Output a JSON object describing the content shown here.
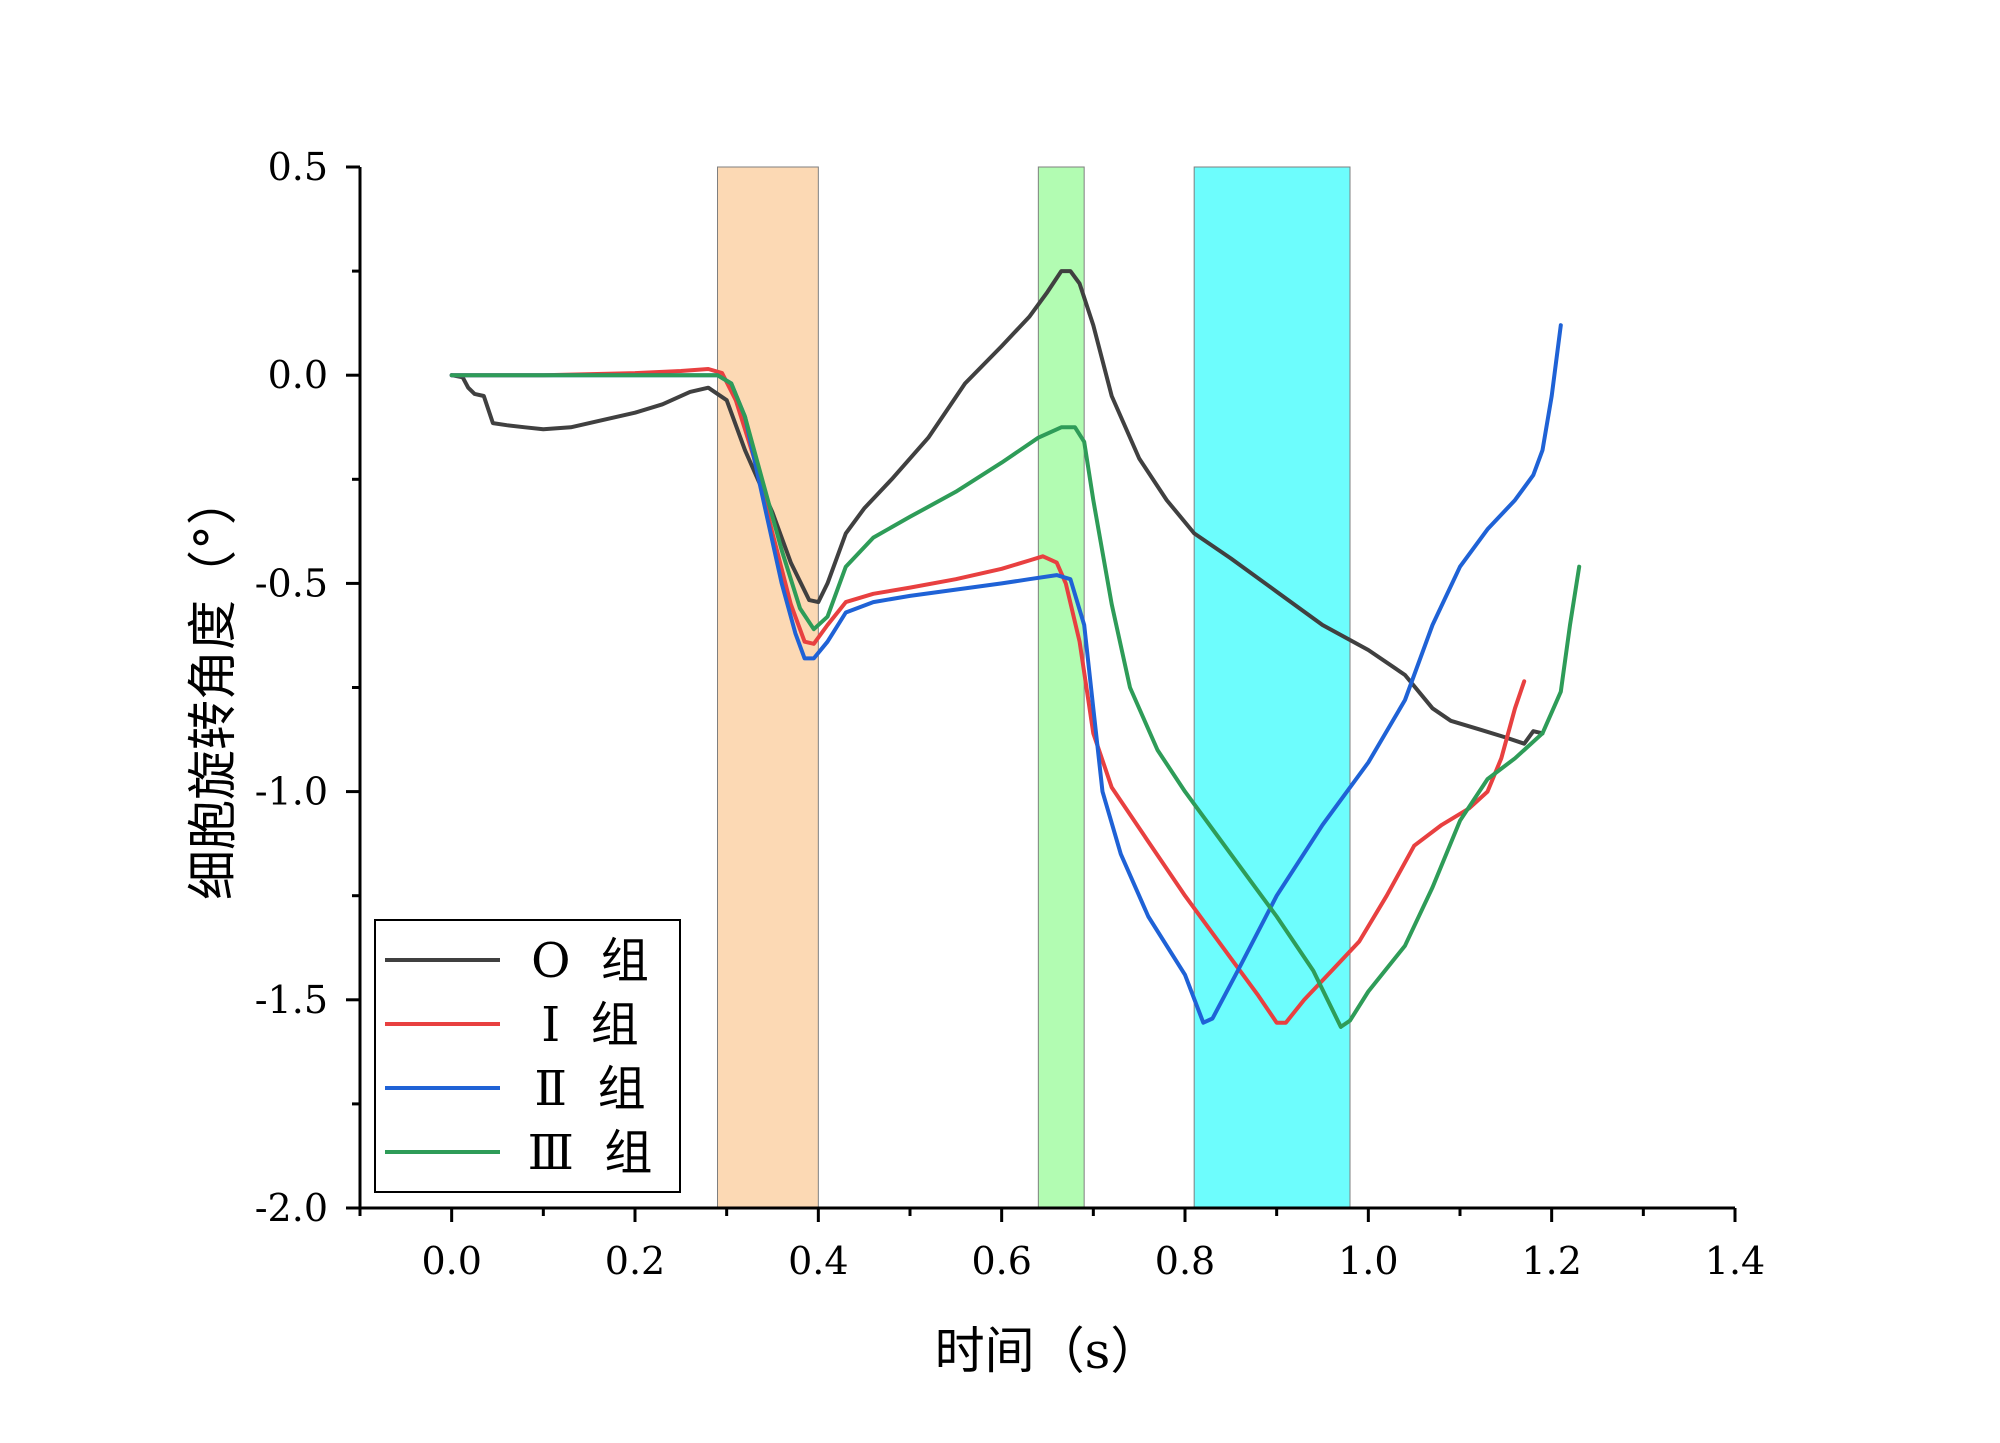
{
  "chart_data": {
    "type": "line",
    "title": "",
    "xlabel": "时间（s）",
    "ylabel": "细胞旋转角度（°）",
    "xlim": [
      -0.1,
      1.4
    ],
    "ylim": [
      -2.0,
      0.5
    ],
    "x_ticks": [
      0.0,
      0.2,
      0.4,
      0.6,
      0.8,
      1.0,
      1.2,
      1.4
    ],
    "x_tick_labels": [
      "0.0",
      "0.2",
      "0.4",
      "0.6",
      "0.8",
      "1.0",
      "1.2",
      "1.4"
    ],
    "y_ticks": [
      0.5,
      0.0,
      -0.5,
      -1.0,
      -1.5,
      -2.0
    ],
    "y_tick_labels": [
      "0.5",
      "0.0",
      "-0.5",
      "-1.0",
      "-1.5",
      "-2.0"
    ],
    "legend_position": "bottom-left",
    "shaded_regions": [
      {
        "x_start": 0.29,
        "x_end": 0.4,
        "color": "#fcd9b4"
      },
      {
        "x_start": 0.64,
        "x_end": 0.69,
        "color": "#b2fcb2"
      },
      {
        "x_start": 0.81,
        "x_end": 0.98,
        "color": "#6dfdfd"
      }
    ],
    "series": [
      {
        "name": "O  组",
        "color": "#404040",
        "points": [
          [
            0.0,
            0.0
          ],
          [
            0.012,
            -0.005
          ],
          [
            0.018,
            -0.03
          ],
          [
            0.025,
            -0.045
          ],
          [
            0.035,
            -0.05
          ],
          [
            0.045,
            -0.115
          ],
          [
            0.06,
            -0.12
          ],
          [
            0.08,
            -0.125
          ],
          [
            0.1,
            -0.13
          ],
          [
            0.13,
            -0.125
          ],
          [
            0.17,
            -0.105
          ],
          [
            0.2,
            -0.09
          ],
          [
            0.23,
            -0.07
          ],
          [
            0.26,
            -0.04
          ],
          [
            0.28,
            -0.03
          ],
          [
            0.3,
            -0.06
          ],
          [
            0.32,
            -0.18
          ],
          [
            0.35,
            -0.33
          ],
          [
            0.37,
            -0.45
          ],
          [
            0.39,
            -0.54
          ],
          [
            0.4,
            -0.545
          ],
          [
            0.41,
            -0.5
          ],
          [
            0.43,
            -0.38
          ],
          [
            0.45,
            -0.32
          ],
          [
            0.48,
            -0.25
          ],
          [
            0.52,
            -0.15
          ],
          [
            0.56,
            -0.02
          ],
          [
            0.6,
            0.07
          ],
          [
            0.63,
            0.14
          ],
          [
            0.65,
            0.2
          ],
          [
            0.665,
            0.25
          ],
          [
            0.675,
            0.25
          ],
          [
            0.685,
            0.22
          ],
          [
            0.7,
            0.12
          ],
          [
            0.72,
            -0.05
          ],
          [
            0.75,
            -0.2
          ],
          [
            0.78,
            -0.3
          ],
          [
            0.81,
            -0.38
          ],
          [
            0.85,
            -0.44
          ],
          [
            0.9,
            -0.52
          ],
          [
            0.95,
            -0.6
          ],
          [
            1.0,
            -0.66
          ],
          [
            1.04,
            -0.72
          ],
          [
            1.07,
            -0.8
          ],
          [
            1.09,
            -0.83
          ],
          [
            1.12,
            -0.85
          ],
          [
            1.15,
            -0.87
          ],
          [
            1.17,
            -0.885
          ],
          [
            1.18,
            -0.855
          ],
          [
            1.19,
            -0.86
          ]
        ]
      },
      {
        "name": "Ⅰ  组",
        "color": "#e84040",
        "points": [
          [
            0.0,
            0.0
          ],
          [
            0.1,
            0.0
          ],
          [
            0.2,
            0.005
          ],
          [
            0.25,
            0.01
          ],
          [
            0.28,
            0.015
          ],
          [
            0.295,
            0.005
          ],
          [
            0.31,
            -0.06
          ],
          [
            0.33,
            -0.2
          ],
          [
            0.35,
            -0.38
          ],
          [
            0.37,
            -0.55
          ],
          [
            0.385,
            -0.64
          ],
          [
            0.395,
            -0.645
          ],
          [
            0.41,
            -0.6
          ],
          [
            0.43,
            -0.545
          ],
          [
            0.46,
            -0.525
          ],
          [
            0.5,
            -0.51
          ],
          [
            0.55,
            -0.49
          ],
          [
            0.6,
            -0.465
          ],
          [
            0.63,
            -0.445
          ],
          [
            0.645,
            -0.435
          ],
          [
            0.66,
            -0.45
          ],
          [
            0.67,
            -0.5
          ],
          [
            0.685,
            -0.64
          ],
          [
            0.7,
            -0.86
          ],
          [
            0.72,
            -0.99
          ],
          [
            0.76,
            -1.12
          ],
          [
            0.8,
            -1.25
          ],
          [
            0.85,
            -1.4
          ],
          [
            0.88,
            -1.49
          ],
          [
            0.9,
            -1.555
          ],
          [
            0.91,
            -1.555
          ],
          [
            0.93,
            -1.5
          ],
          [
            0.96,
            -1.43
          ],
          [
            0.99,
            -1.36
          ],
          [
            1.02,
            -1.25
          ],
          [
            1.05,
            -1.13
          ],
          [
            1.08,
            -1.08
          ],
          [
            1.11,
            -1.04
          ],
          [
            1.13,
            -1.0
          ],
          [
            1.145,
            -0.92
          ],
          [
            1.16,
            -0.8
          ],
          [
            1.17,
            -0.735
          ]
        ]
      },
      {
        "name": "Ⅱ  组",
        "color": "#1f62d6",
        "points": [
          [
            0.0,
            0.0
          ],
          [
            0.1,
            0.0
          ],
          [
            0.2,
            0.0
          ],
          [
            0.25,
            0.0
          ],
          [
            0.29,
            0.0
          ],
          [
            0.305,
            -0.02
          ],
          [
            0.32,
            -0.1
          ],
          [
            0.34,
            -0.3
          ],
          [
            0.36,
            -0.5
          ],
          [
            0.375,
            -0.62
          ],
          [
            0.385,
            -0.68
          ],
          [
            0.395,
            -0.68
          ],
          [
            0.41,
            -0.64
          ],
          [
            0.43,
            -0.57
          ],
          [
            0.46,
            -0.545
          ],
          [
            0.5,
            -0.53
          ],
          [
            0.55,
            -0.515
          ],
          [
            0.6,
            -0.5
          ],
          [
            0.63,
            -0.49
          ],
          [
            0.66,
            -0.48
          ],
          [
            0.675,
            -0.49
          ],
          [
            0.69,
            -0.6
          ],
          [
            0.7,
            -0.8
          ],
          [
            0.71,
            -1.0
          ],
          [
            0.73,
            -1.15
          ],
          [
            0.76,
            -1.3
          ],
          [
            0.8,
            -1.44
          ],
          [
            0.82,
            -1.555
          ],
          [
            0.83,
            -1.545
          ],
          [
            0.86,
            -1.42
          ],
          [
            0.9,
            -1.25
          ],
          [
            0.95,
            -1.08
          ],
          [
            1.0,
            -0.93
          ],
          [
            1.04,
            -0.78
          ],
          [
            1.07,
            -0.6
          ],
          [
            1.1,
            -0.46
          ],
          [
            1.13,
            -0.37
          ],
          [
            1.16,
            -0.3
          ],
          [
            1.18,
            -0.24
          ],
          [
            1.19,
            -0.18
          ],
          [
            1.2,
            -0.05
          ],
          [
            1.21,
            0.12
          ]
        ]
      },
      {
        "name": "Ⅲ  组",
        "color": "#2e9c58",
        "points": [
          [
            0.0,
            0.0
          ],
          [
            0.1,
            0.0
          ],
          [
            0.2,
            0.0
          ],
          [
            0.25,
            0.0
          ],
          [
            0.29,
            0.0
          ],
          [
            0.305,
            -0.02
          ],
          [
            0.32,
            -0.1
          ],
          [
            0.34,
            -0.26
          ],
          [
            0.36,
            -0.42
          ],
          [
            0.38,
            -0.56
          ],
          [
            0.395,
            -0.61
          ],
          [
            0.41,
            -0.58
          ],
          [
            0.43,
            -0.46
          ],
          [
            0.46,
            -0.39
          ],
          [
            0.5,
            -0.34
          ],
          [
            0.55,
            -0.28
          ],
          [
            0.6,
            -0.21
          ],
          [
            0.64,
            -0.15
          ],
          [
            0.665,
            -0.125
          ],
          [
            0.68,
            -0.125
          ],
          [
            0.69,
            -0.16
          ],
          [
            0.7,
            -0.3
          ],
          [
            0.72,
            -0.55
          ],
          [
            0.74,
            -0.75
          ],
          [
            0.77,
            -0.9
          ],
          [
            0.8,
            -1.0
          ],
          [
            0.85,
            -1.15
          ],
          [
            0.9,
            -1.3
          ],
          [
            0.94,
            -1.43
          ],
          [
            0.97,
            -1.565
          ],
          [
            0.98,
            -1.55
          ],
          [
            1.0,
            -1.48
          ],
          [
            1.04,
            -1.37
          ],
          [
            1.07,
            -1.23
          ],
          [
            1.1,
            -1.07
          ],
          [
            1.13,
            -0.97
          ],
          [
            1.16,
            -0.92
          ],
          [
            1.19,
            -0.86
          ],
          [
            1.21,
            -0.76
          ],
          [
            1.22,
            -0.6
          ],
          [
            1.23,
            -0.46
          ]
        ]
      }
    ]
  }
}
